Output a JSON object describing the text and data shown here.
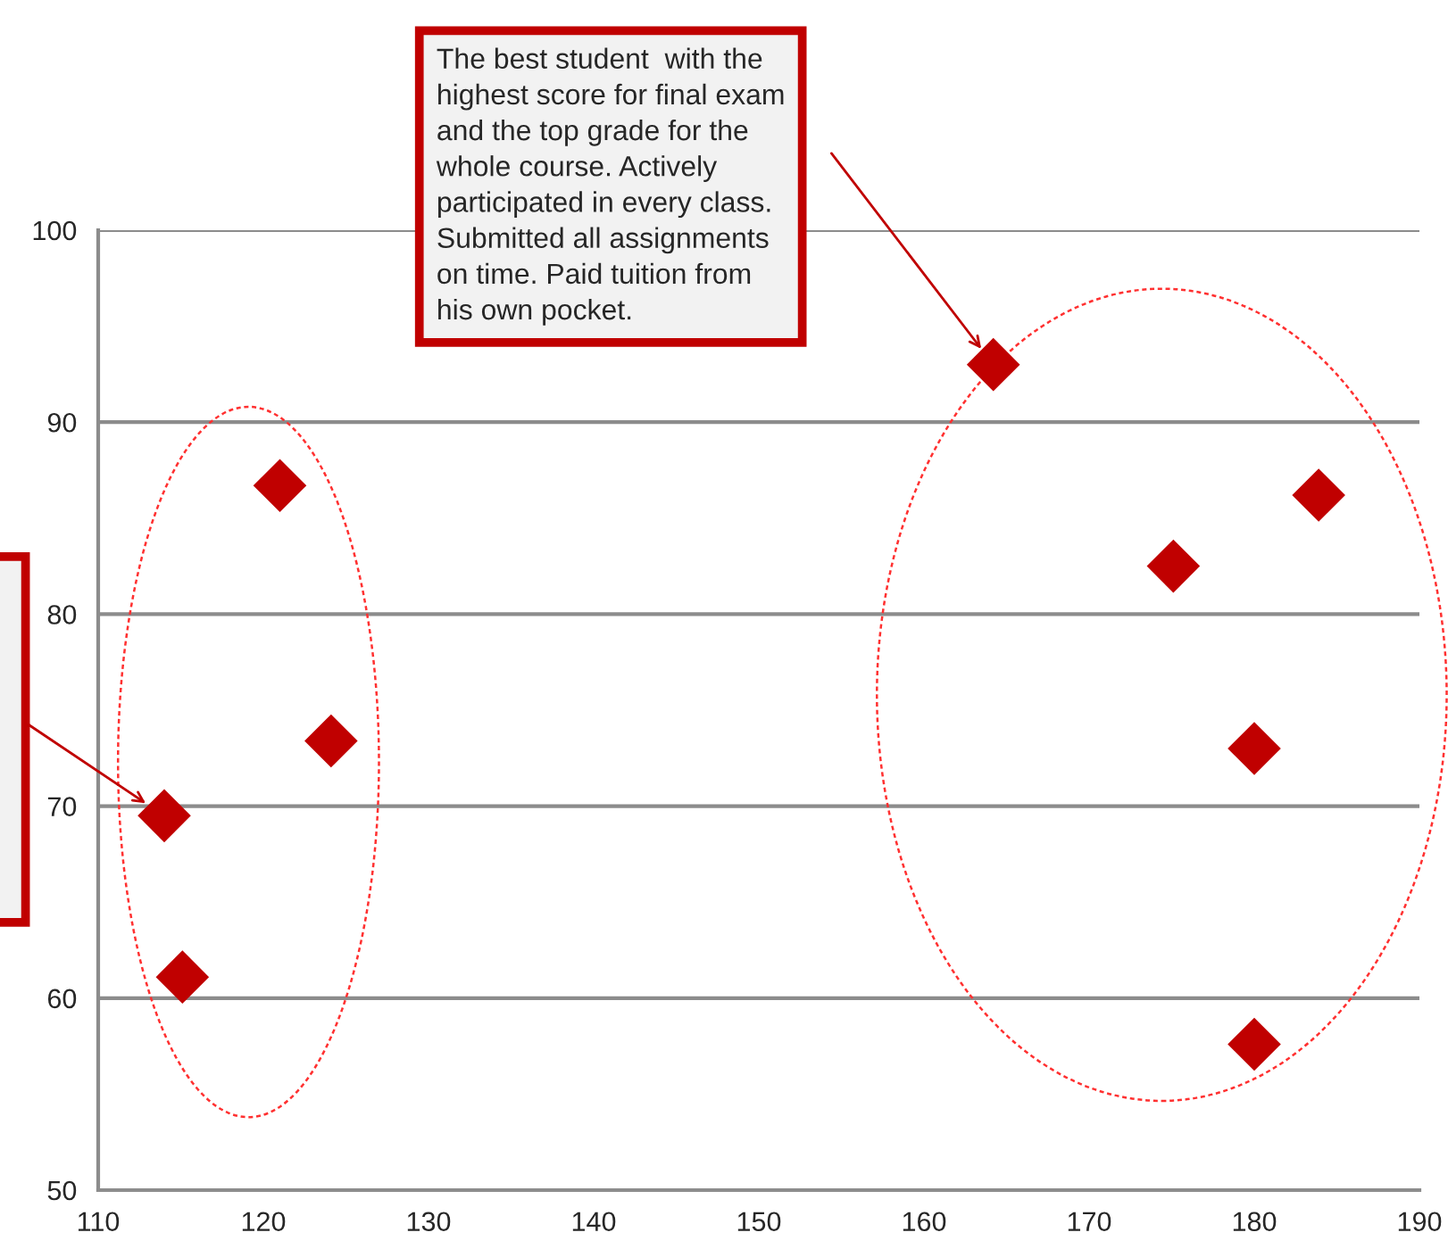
{
  "chart_data": {
    "type": "scatter",
    "x": [
      114,
      115.1,
      121,
      124.1,
      164.2,
      175.1,
      183.9,
      180,
      180
    ],
    "values": [
      69.5,
      61.1,
      86.7,
      73.4,
      93,
      82.5,
      86.2,
      73,
      57.6
    ],
    "color": "#c00000",
    "marker": "diamond",
    "xlim": [
      110,
      190
    ],
    "xticks": [
      110,
      120,
      130,
      140,
      150,
      160,
      170,
      180,
      190
    ],
    "ylim": [
      50,
      100
    ],
    "yticks": [
      50,
      60,
      70,
      80,
      90,
      100
    ],
    "grid": "y",
    "annotations": [
      "The best student  with the\nhighest score for final exam\nand the top grade for the\nwhole course. Actively\nparticipated in every class.\nSubmitted all assignments\non time. Paid tuition from\nhis own pocket."
    ]
  }
}
